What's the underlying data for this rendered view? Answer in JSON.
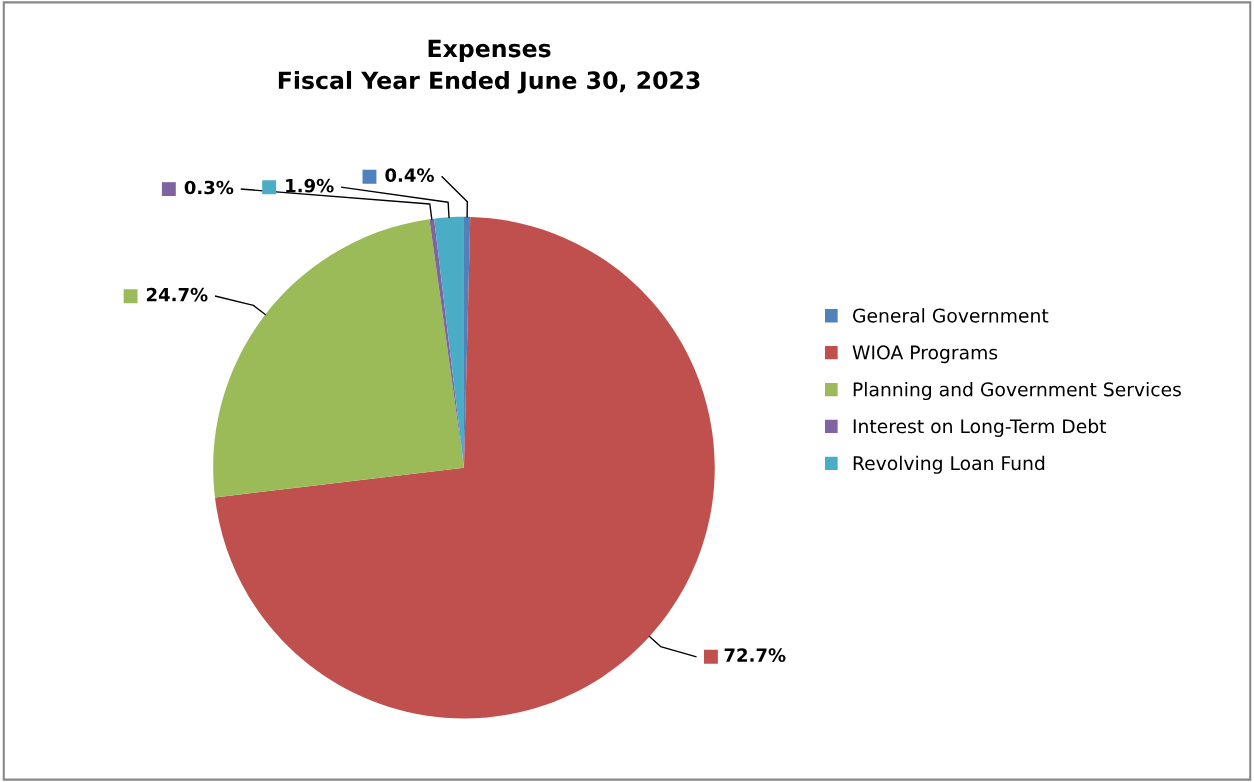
{
  "chart_data": {
    "type": "pie",
    "title": "Expenses\nFiscal Year Ended June 30, 2023",
    "categories": [
      "General Government",
      "WIOA Programs",
      "Planning and Government Services",
      "Interest on Long-Term Debt",
      "Revolving Loan Fund"
    ],
    "values": [
      0.4,
      72.7,
      24.7,
      0.3,
      1.9
    ],
    "colors": [
      "#4f81bd",
      "#c0504d",
      "#9bbb59",
      "#8064a2",
      "#4bacc6"
    ],
    "value_labels": [
      "0.4%",
      "72.7%",
      "24.7%",
      "0.3%",
      "1.9%"
    ],
    "legend": "right"
  }
}
